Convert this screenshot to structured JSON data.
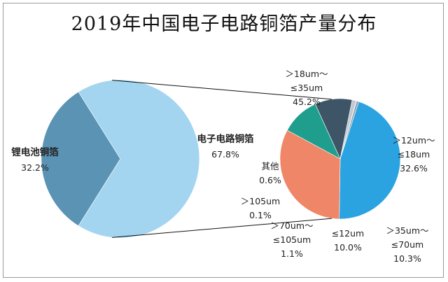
{
  "chart_data": {
    "type": "pie-of-pie",
    "title": "2019年中国电子电路铜箔产量分布",
    "main": {
      "slices": [
        {
          "name": "锂电池铜箔",
          "value": 32.2,
          "label": "32.2%",
          "color": "#5b93b4"
        },
        {
          "name": "电子电路铜箔",
          "value": 67.8,
          "label": "67.8%",
          "color": "#a3d5f0"
        }
      ]
    },
    "secondary": {
      "parent": "电子电路铜箔",
      "slices": [
        {
          "name_lines": [
            "＞18um～",
            "≤35um"
          ],
          "value": 45.2,
          "label": "45.2%",
          "color": "#2aa3e0"
        },
        {
          "name_lines": [
            "＞12um～",
            "≤18um"
          ],
          "value": 32.6,
          "label": "32.6%",
          "color": "#ef8668"
        },
        {
          "name_lines": [
            "＞35um～",
            "≤70um"
          ],
          "value": 10.3,
          "label": "10.3%",
          "color": "#1f9e8e"
        },
        {
          "name_lines": [
            "≤12um"
          ],
          "value": 10.0,
          "label": "10.0%",
          "color": "#3d5567"
        },
        {
          "name_lines": [
            "＞70um～",
            "≤105um"
          ],
          "value": 1.1,
          "label": "1.1%",
          "color": "#c0c9d2"
        },
        {
          "name_lines": [
            "＞105um"
          ],
          "value": 0.1,
          "label": "0.1%",
          "color": "#5a6a78"
        },
        {
          "name_lines": [
            "其他"
          ],
          "value": 0.6,
          "label": "0.6%",
          "color": "#8fa1b0"
        }
      ]
    }
  }
}
